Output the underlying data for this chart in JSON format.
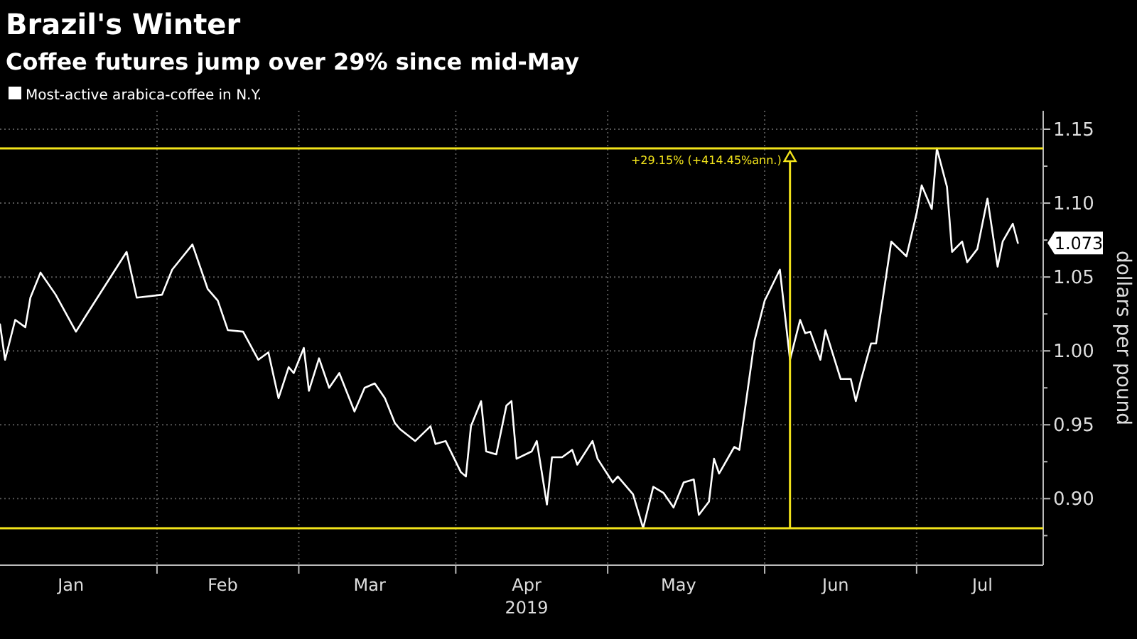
{
  "chart_data": {
    "type": "line",
    "title": "Brazil's Winter",
    "subtitle": "Coffee futures jump over 29% since mid-May",
    "xlabel": "2019",
    "ylabel": "dollars per pound",
    "x": [
      "2019-01-01",
      "2019-01-02",
      "2019-01-04",
      "2019-01-06",
      "2019-01-07",
      "2019-01-09",
      "2019-01-12",
      "2019-01-16",
      "2019-01-18",
      "2019-01-26",
      "2019-01-28",
      "2019-02-02",
      "2019-02-04",
      "2019-02-08",
      "2019-02-11",
      "2019-02-13",
      "2019-02-15",
      "2019-02-18",
      "2019-02-21",
      "2019-02-23",
      "2019-02-25",
      "2019-02-27",
      "2019-02-28",
      "2019-03-02",
      "2019-03-03",
      "2019-03-05",
      "2019-03-07",
      "2019-03-09",
      "2019-03-12",
      "2019-03-14",
      "2019-03-16",
      "2019-03-18",
      "2019-03-20",
      "2019-03-21",
      "2019-03-24",
      "2019-03-27",
      "2019-03-28",
      "2019-03-30",
      "2019-04-02",
      "2019-04-03",
      "2019-04-04",
      "2019-04-06",
      "2019-04-07",
      "2019-04-09",
      "2019-04-11",
      "2019-04-12",
      "2019-04-13",
      "2019-04-16",
      "2019-04-17",
      "2019-04-19",
      "2019-04-20",
      "2019-04-22",
      "2019-04-24",
      "2019-04-25",
      "2019-04-28",
      "2019-04-29",
      "2019-05-02",
      "2019-05-03",
      "2019-05-06",
      "2019-05-08",
      "2019-05-10",
      "2019-05-12",
      "2019-05-14",
      "2019-05-16",
      "2019-05-18",
      "2019-05-19",
      "2019-05-21",
      "2019-05-22",
      "2019-05-23",
      "2019-05-26",
      "2019-05-27",
      "2019-05-30",
      "2019-06-01",
      "2019-06-04",
      "2019-06-06",
      "2019-06-08",
      "2019-06-09",
      "2019-06-10",
      "2019-06-12",
      "2019-06-13",
      "2019-06-16",
      "2019-06-18",
      "2019-06-19",
      "2019-06-20",
      "2019-06-22",
      "2019-06-23",
      "2019-06-26",
      "2019-06-29",
      "2019-07-01",
      "2019-07-02",
      "2019-07-04",
      "2019-07-05",
      "2019-07-07",
      "2019-07-08",
      "2019-07-10",
      "2019-07-11",
      "2019-07-13",
      "2019-07-15",
      "2019-07-17",
      "2019-07-18",
      "2019-07-20",
      "2019-07-21"
    ],
    "series": [
      {
        "name": "Most-active arabica-coffee in N.Y.",
        "color": "#ffffff",
        "values": [
          1.018,
          0.994,
          1.021,
          1.016,
          1.036,
          1.053,
          1.038,
          1.013,
          1.024,
          1.067,
          1.036,
          1.038,
          1.055,
          1.072,
          1.042,
          1.034,
          1.014,
          1.013,
          0.994,
          0.999,
          0.968,
          0.989,
          0.985,
          1.002,
          0.973,
          0.995,
          0.975,
          0.985,
          0.959,
          0.975,
          0.978,
          0.968,
          0.951,
          0.947,
          0.939,
          0.949,
          0.937,
          0.939,
          0.918,
          0.915,
          0.949,
          0.966,
          0.932,
          0.93,
          0.963,
          0.966,
          0.927,
          0.932,
          0.939,
          0.896,
          0.928,
          0.928,
          0.933,
          0.923,
          0.939,
          0.927,
          0.911,
          0.915,
          0.903,
          0.88,
          0.908,
          0.904,
          0.894,
          0.911,
          0.913,
          0.889,
          0.898,
          0.927,
          0.917,
          0.935,
          0.933,
          1.007,
          1.034,
          1.055,
          0.994,
          1.021,
          1.012,
          1.013,
          0.994,
          1.014,
          0.981,
          0.981,
          0.966,
          0.98,
          1.005,
          1.005,
          1.074,
          1.064,
          1.093,
          1.112,
          1.096,
          1.137,
          1.111,
          1.067,
          1.074,
          1.06,
          1.069,
          1.103,
          1.057,
          1.074,
          1.086,
          1.073
        ]
      }
    ],
    "xlim": [
      "2019-01-01",
      "2019-07-26"
    ],
    "xticks": [
      {
        "value": "2019-02-01",
        "label": null
      },
      {
        "value": "2019-03-01",
        "label": null
      },
      {
        "value": "2019-04-01",
        "label": null
      },
      {
        "value": "2019-05-01",
        "label": null
      },
      {
        "value": "2019-06-01",
        "label": null
      },
      {
        "value": "2019-07-01",
        "label": null
      },
      {
        "value": "2019-01-15",
        "label": "Jan"
      },
      {
        "value": "2019-02-14",
        "label": "Feb"
      },
      {
        "value": "2019-03-15",
        "label": "Mar"
      },
      {
        "value": "2019-04-15",
        "label": "Apr"
      },
      {
        "value": "2019-05-15",
        "label": "May"
      },
      {
        "value": "2019-06-15",
        "label": "Jun"
      },
      {
        "value": "2019-07-14",
        "label": "Jul"
      }
    ],
    "ylim": [
      0.855,
      1.1625
    ],
    "yticks": [
      {
        "value": 0.875,
        "label": null
      },
      {
        "value": 0.9,
        "label": "0.90"
      },
      {
        "value": 0.925,
        "label": null
      },
      0.95,
      {
        "value": 0.975,
        "label": null
      },
      {
        "value": 1.0,
        "label": "1.00"
      },
      {
        "value": 1.025,
        "label": null
      },
      1.05,
      {
        "value": 1.075,
        "label": null
      },
      {
        "value": 1.1,
        "label": "1.10"
      },
      {
        "value": 1.125,
        "label": null
      },
      1.15
    ],
    "ref_lines": [
      {
        "axis": "y",
        "value": 0.88,
        "color": "#f2e31b"
      },
      {
        "axis": "y",
        "value": 1.137,
        "color": "#f2e31b"
      },
      {
        "axis": "x",
        "value": "2019-06-06",
        "color": "#f2e31b"
      }
    ],
    "annotations": [
      {
        "text": "+29.15% (+414.45%ann.)",
        "x": "2019-06-06",
        "y": 1.137
      },
      "1.073"
    ],
    "grid": true,
    "legend": "top left"
  }
}
